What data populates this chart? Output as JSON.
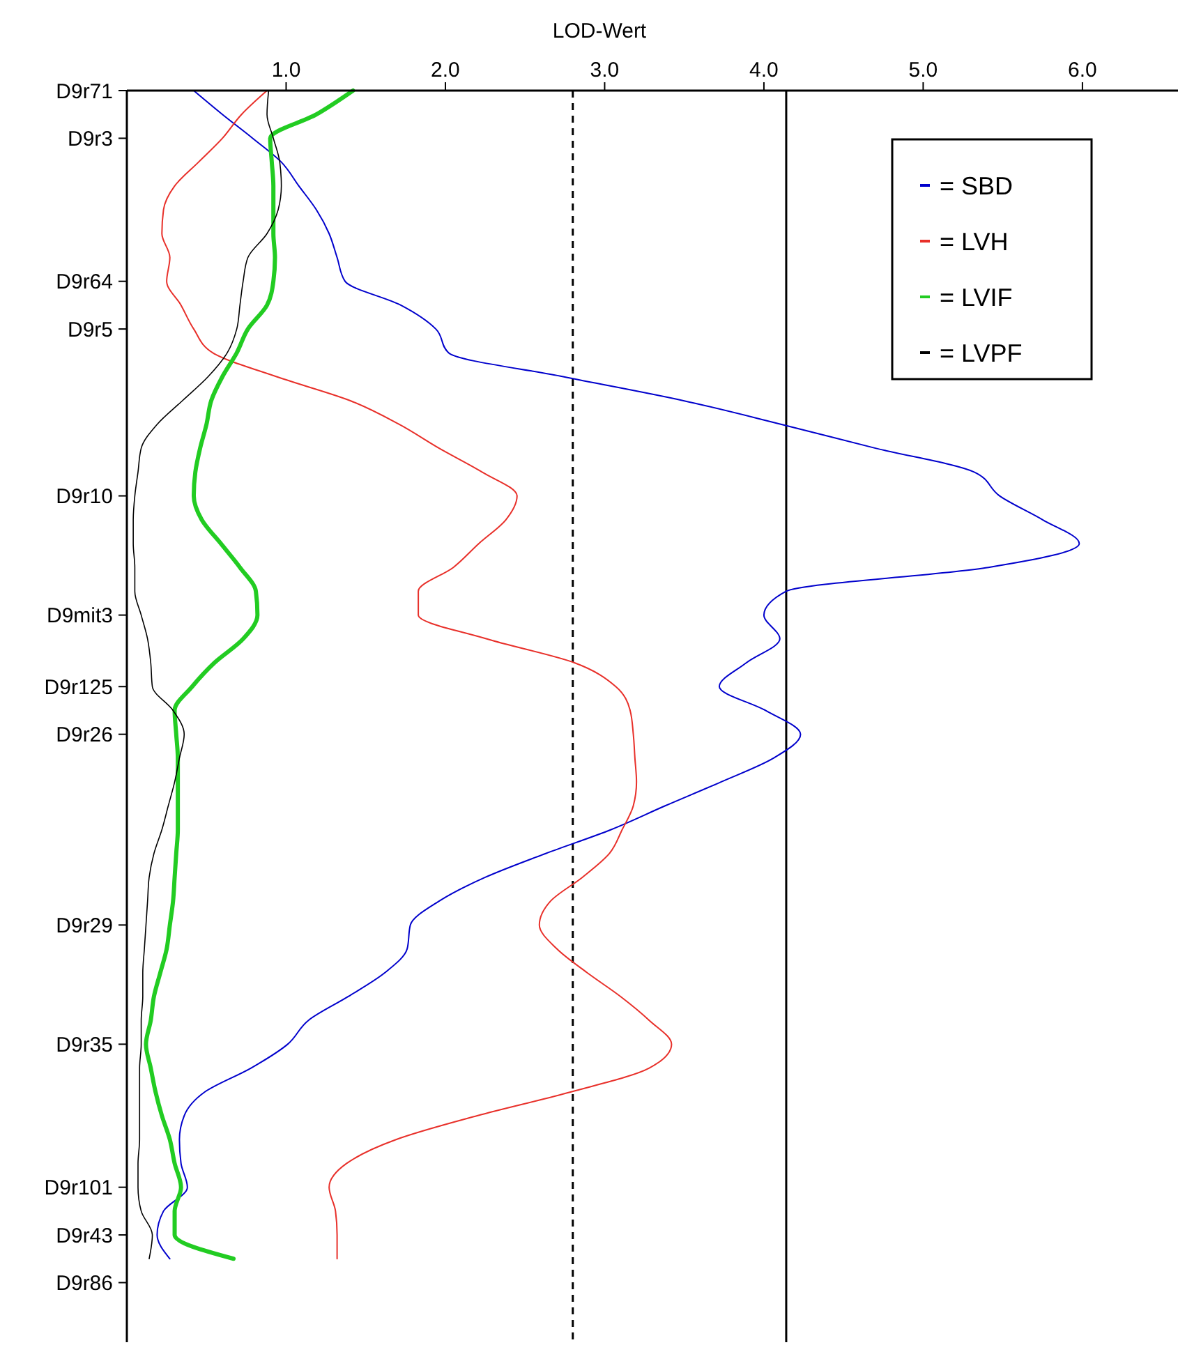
{
  "chart_data": {
    "type": "line",
    "orientation": "horizontal",
    "xlabel": "LOD-Wert",
    "xlim": [
      0,
      6.6
    ],
    "xticks": [
      {
        "value": 1,
        "label": "1.0"
      },
      {
        "value": 2,
        "label": "2.0"
      },
      {
        "value": 3,
        "label": "3.0"
      },
      {
        "value": 4,
        "label": "4.0"
      },
      {
        "value": 5,
        "label": "5.0"
      },
      {
        "value": 6,
        "label": "6.0"
      }
    ],
    "categories": [
      "D9r71",
      null,
      "D9r3",
      null,
      null,
      null,
      null,
      null,
      "D9r64",
      null,
      "D9r5",
      null,
      null,
      null,
      null,
      null,
      null,
      "D9r10",
      null,
      null,
      null,
      null,
      "D9mit3",
      null,
      null,
      "D9r125",
      null,
      "D9r26",
      null,
      null,
      null,
      null,
      null,
      null,
      null,
      "D9r29",
      null,
      null,
      null,
      null,
      "D9r35",
      null,
      null,
      null,
      null,
      null,
      "D9r101",
      null,
      "D9r43",
      null,
      "D9r86",
      null,
      null
    ],
    "ref_lines": [
      {
        "axis": "x",
        "value": 2.8,
        "line_style": "dashed",
        "color": "#000000"
      },
      {
        "axis": "x",
        "value": 4.14,
        "line_style": "solid",
        "color": "#000000"
      }
    ],
    "legend": "top right",
    "grid": false,
    "marker": "none",
    "series": [
      {
        "name": "= SBD",
        "color": "#0000cc",
        "values": [
          0.42,
          0.6,
          0.79,
          0.97,
          1.08,
          1.19,
          1.27,
          1.32,
          1.37,
          1.72,
          1.94,
          2.02,
          2.74,
          3.49,
          4.11,
          4.7,
          5.32,
          5.48,
          5.75,
          5.98,
          5.41,
          4.14,
          4.0,
          4.1,
          3.89,
          3.72,
          4.01,
          4.23,
          4.06,
          3.73,
          3.38,
          3.04,
          2.63,
          2.25,
          1.96,
          1.78,
          1.76,
          1.62,
          1.39,
          1.14,
          1.01,
          0.78,
          0.49,
          0.36,
          0.33,
          0.34,
          0.38,
          0.23,
          0.19,
          0.27,
          null,
          null,
          null
        ]
      },
      {
        "name": "= LVH",
        "color": "#e8302a",
        "values": [
          0.88,
          0.72,
          0.6,
          0.45,
          0.3,
          0.23,
          0.22,
          0.27,
          0.25,
          0.34,
          0.42,
          0.54,
          0.94,
          1.4,
          1.71,
          1.96,
          2.23,
          2.45,
          2.38,
          2.21,
          2.05,
          1.83,
          1.83,
          2.26,
          2.81,
          3.07,
          3.16,
          3.18,
          3.19,
          3.2,
          3.18,
          3.11,
          3.03,
          2.86,
          2.66,
          2.59,
          2.7,
          2.89,
          3.1,
          3.28,
          3.42,
          3.28,
          2.79,
          2.2,
          1.69,
          1.38,
          1.27,
          1.31,
          1.32,
          1.32,
          null,
          null,
          null
        ]
      },
      {
        "name": "= LVIF",
        "color": "#22cc22",
        "values": [
          1.42,
          1.19,
          0.9,
          0.91,
          0.92,
          0.92,
          0.92,
          0.93,
          0.92,
          0.88,
          0.76,
          0.69,
          0.6,
          0.53,
          0.5,
          0.46,
          0.43,
          0.42,
          0.47,
          0.59,
          0.71,
          0.81,
          0.82,
          0.73,
          0.55,
          0.41,
          0.3,
          0.31,
          0.32,
          0.32,
          0.32,
          0.32,
          0.31,
          0.3,
          0.29,
          0.27,
          0.25,
          0.21,
          0.17,
          0.15,
          0.12,
          0.15,
          0.18,
          0.22,
          0.27,
          0.3,
          0.34,
          0.3,
          0.3,
          0.67,
          null,
          null,
          null
        ]
      },
      {
        "name": "= LVPF",
        "color": "#000000",
        "values": [
          0.89,
          0.88,
          0.92,
          0.96,
          0.97,
          0.95,
          0.88,
          0.76,
          0.73,
          0.71,
          0.69,
          0.63,
          0.51,
          0.35,
          0.19,
          0.09,
          0.07,
          0.05,
          0.04,
          0.04,
          0.05,
          0.05,
          0.09,
          0.13,
          0.15,
          0.16,
          0.29,
          0.36,
          0.33,
          0.3,
          0.26,
          0.22,
          0.17,
          0.14,
          0.13,
          0.12,
          0.11,
          0.1,
          0.1,
          0.09,
          0.09,
          0.08,
          0.08,
          0.08,
          0.08,
          0.07,
          0.07,
          0.09,
          0.16,
          0.14,
          null,
          null,
          null
        ]
      }
    ]
  }
}
